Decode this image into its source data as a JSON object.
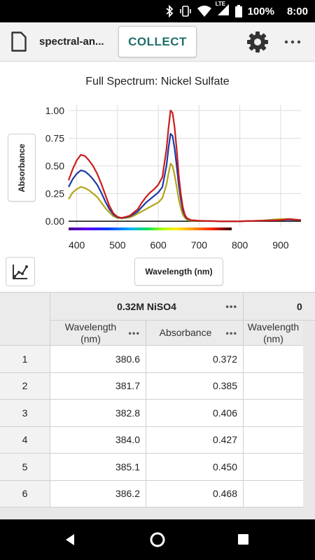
{
  "status_bar": {
    "network": "LTE",
    "battery": "100%",
    "time": "8:00",
    "icons": [
      "bluetooth-icon",
      "vibrate-icon",
      "wifi-icon",
      "signal-icon",
      "battery-icon"
    ]
  },
  "toolbar": {
    "file_name": "spectral-an...",
    "collect_label": "COLLECT",
    "icons": [
      "file-icon",
      "gear-icon",
      "more-icon"
    ]
  },
  "chart_data": {
    "type": "line",
    "title": "Full Spectrum: Nickel Sulfate",
    "xlabel": "Wavelength (nm)",
    "ylabel": "Absorbance",
    "xlim": [
      380,
      950
    ],
    "ylim": [
      -0.05,
      1.05
    ],
    "x_ticks": [
      400,
      500,
      600,
      700,
      800,
      900
    ],
    "y_ticks": [
      0.0,
      0.25,
      0.5,
      0.75,
      1.0
    ],
    "y_tick_labels": [
      "0.00",
      "0.25",
      "0.50",
      "0.75",
      "1.00"
    ],
    "grid": true,
    "spectrum_bar": [
      380,
      780
    ],
    "series": [
      {
        "color": "#cc1b1b",
        "x": [
          380,
          390,
          400,
          410,
          420,
          430,
          440,
          450,
          460,
          470,
          480,
          490,
          500,
          510,
          520,
          530,
          540,
          550,
          560,
          570,
          580,
          590,
          600,
          610,
          620,
          625,
          630,
          635,
          640,
          645,
          650,
          655,
          660,
          665,
          670,
          680,
          700,
          750,
          800,
          850,
          900,
          920,
          950
        ],
        "y": [
          0.37,
          0.47,
          0.55,
          0.6,
          0.59,
          0.55,
          0.5,
          0.43,
          0.34,
          0.24,
          0.14,
          0.07,
          0.04,
          0.03,
          0.04,
          0.05,
          0.08,
          0.11,
          0.17,
          0.22,
          0.26,
          0.29,
          0.33,
          0.4,
          0.65,
          0.84,
          1.0,
          0.98,
          0.85,
          0.65,
          0.42,
          0.25,
          0.13,
          0.06,
          0.03,
          0.01,
          0.005,
          0.0,
          0.0,
          0.005,
          0.01,
          0.02,
          0.01
        ]
      },
      {
        "color": "#1a3aa6",
        "x": [
          380,
          390,
          400,
          410,
          420,
          430,
          440,
          450,
          460,
          470,
          480,
          490,
          500,
          510,
          520,
          530,
          540,
          550,
          560,
          570,
          580,
          590,
          600,
          610,
          620,
          625,
          630,
          635,
          640,
          645,
          650,
          655,
          660,
          665,
          670,
          680,
          700,
          750,
          800,
          850,
          900,
          920,
          950
        ],
        "y": [
          0.31,
          0.38,
          0.43,
          0.46,
          0.45,
          0.42,
          0.38,
          0.33,
          0.26,
          0.18,
          0.11,
          0.06,
          0.035,
          0.03,
          0.035,
          0.045,
          0.065,
          0.09,
          0.13,
          0.17,
          0.2,
          0.23,
          0.26,
          0.31,
          0.5,
          0.66,
          0.79,
          0.77,
          0.66,
          0.5,
          0.33,
          0.2,
          0.1,
          0.05,
          0.025,
          0.01,
          0.005,
          0.0,
          0.0,
          0.005,
          0.01,
          0.015,
          0.01
        ]
      },
      {
        "color": "#b3a619",
        "x": [
          380,
          390,
          400,
          410,
          420,
          430,
          440,
          450,
          460,
          470,
          480,
          490,
          500,
          510,
          520,
          530,
          540,
          550,
          560,
          570,
          580,
          590,
          600,
          610,
          620,
          625,
          630,
          635,
          640,
          645,
          650,
          655,
          660,
          665,
          670,
          680,
          700,
          750,
          800,
          850,
          900,
          920,
          950
        ],
        "y": [
          0.2,
          0.26,
          0.29,
          0.31,
          0.3,
          0.28,
          0.25,
          0.22,
          0.17,
          0.12,
          0.08,
          0.045,
          0.03,
          0.025,
          0.03,
          0.035,
          0.05,
          0.07,
          0.09,
          0.11,
          0.13,
          0.15,
          0.17,
          0.21,
          0.33,
          0.43,
          0.52,
          0.5,
          0.42,
          0.31,
          0.2,
          0.12,
          0.06,
          0.03,
          0.015,
          0.005,
          0.003,
          0.0,
          0.0,
          0.005,
          0.02,
          0.02,
          0.01
        ]
      }
    ]
  },
  "table": {
    "group_title": "0.32M NiSO4",
    "group2_partial": "0",
    "col_wavelength_line1": "Wavelength",
    "col_wavelength_line2": "(nm)",
    "col_absorbance": "Absorbance",
    "dots": "•••",
    "rows": [
      {
        "n": "1",
        "wavelength": "380.6",
        "absorbance": "0.372"
      },
      {
        "n": "2",
        "wavelength": "381.7",
        "absorbance": "0.385"
      },
      {
        "n": "3",
        "wavelength": "382.8",
        "absorbance": "0.406"
      },
      {
        "n": "4",
        "wavelength": "384.0",
        "absorbance": "0.427"
      },
      {
        "n": "5",
        "wavelength": "385.1",
        "absorbance": "0.450"
      },
      {
        "n": "6",
        "wavelength": "386.2",
        "absorbance": "0.468"
      }
    ]
  },
  "nav": {
    "icons": [
      "back-icon",
      "home-icon",
      "recents-icon"
    ]
  }
}
